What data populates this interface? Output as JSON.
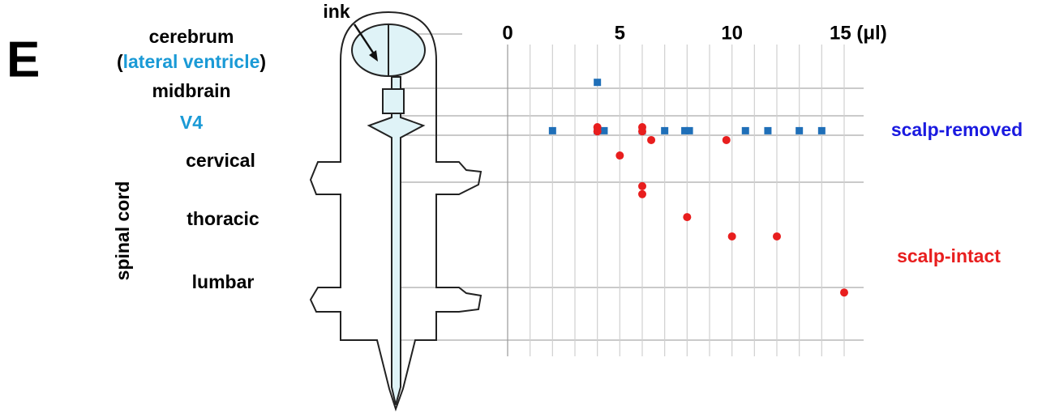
{
  "panel_label": "E",
  "labels": {
    "cerebrum": "cerebrum",
    "lateral_ventricle": [
      "(",
      "lateral ventricle",
      ")"
    ],
    "midbrain": "midbrain",
    "v4": "V4",
    "cervical": "cervical",
    "thoracic": "thoracic",
    "lumbar": "lumbar",
    "spinal_cord": "spinal cord",
    "ink": "ink"
  },
  "chart_data": {
    "type": "scatter",
    "xlim": [
      0,
      15
    ],
    "xticks": [
      0,
      5,
      10,
      {
        "value": 15,
        "label": "15 (μl)"
      }
    ],
    "xgrid": [
      0,
      1,
      2,
      3,
      4,
      5,
      6,
      7,
      8,
      9,
      10,
      11,
      12,
      13,
      14,
      15
    ],
    "ylim": [
      0,
      100
    ],
    "y_inverted": true,
    "series": [
      {
        "name": "scalp-removed",
        "color": "#1f6fb8",
        "label_color": "#1a1ae0",
        "marker": "square",
        "x": [
          4,
          2,
          4,
          4.3,
          6,
          7,
          7.9,
          8.1,
          10.6,
          11.6,
          13,
          14
        ],
        "values": [
          15,
          30,
          30,
          30,
          30,
          30,
          30,
          30,
          30,
          30,
          30,
          30
        ]
      },
      {
        "name": "scalp-intact",
        "color": "#e81e1e",
        "label_color": "#e81e1e",
        "marker": "circle",
        "x": [
          4,
          4,
          6,
          6,
          6.4,
          9.75,
          5,
          6,
          6,
          8,
          10,
          12,
          15
        ],
        "values": [
          28.9,
          30.2,
          28.9,
          30.2,
          32.9,
          32.9,
          37.7,
          47.2,
          49.7,
          56.8,
          62.8,
          62.8,
          80.2
        ]
      }
    ]
  }
}
